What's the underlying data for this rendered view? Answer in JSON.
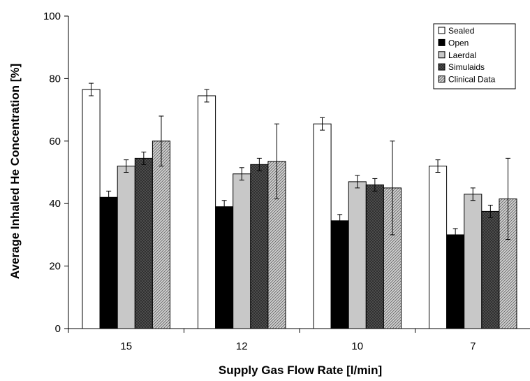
{
  "chart_data": {
    "type": "bar",
    "title": "",
    "xlabel": "Supply Gas Flow Rate [l/min]",
    "ylabel": "Average Inhaled He Concentration [%]",
    "categories": [
      "15",
      "12",
      "10",
      "7"
    ],
    "ylim": [
      0,
      100
    ],
    "yticks": [
      0,
      20,
      40,
      60,
      80,
      100
    ],
    "grid": false,
    "legend_position": "top-right",
    "series": [
      {
        "name": "Sealed",
        "fill": "#ffffff",
        "pattern": "none",
        "values": [
          76.5,
          74.5,
          65.5,
          52.0
        ],
        "errors": [
          2.0,
          2.0,
          2.0,
          2.0
        ]
      },
      {
        "name": "Open",
        "fill": "#000000",
        "pattern": "none",
        "values": [
          42.0,
          39.0,
          34.5,
          30.0
        ],
        "errors": [
          2.0,
          2.0,
          2.0,
          2.0
        ]
      },
      {
        "name": "Laerdal",
        "fill": "#c8c8c8",
        "pattern": "none",
        "values": [
          52.0,
          49.5,
          47.0,
          43.0
        ],
        "errors": [
          2.0,
          2.0,
          2.0,
          2.0
        ]
      },
      {
        "name": "Simulaids",
        "fill": "#555555",
        "pattern": "crosshatch",
        "values": [
          54.5,
          52.5,
          46.0,
          37.5
        ],
        "errors": [
          2.0,
          2.0,
          2.0,
          2.0
        ]
      },
      {
        "name": "Clinical Data",
        "fill": "#bbbbbb",
        "pattern": "diagonal",
        "values": [
          60.0,
          53.5,
          45.0,
          41.5
        ],
        "errors": [
          8.0,
          12.0,
          15.0,
          13.0
        ]
      }
    ]
  }
}
